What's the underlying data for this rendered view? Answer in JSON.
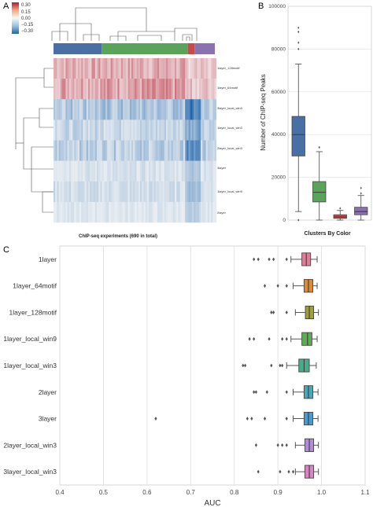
{
  "panels": {
    "a": "A",
    "b": "B",
    "c": "C"
  },
  "heatmap": {
    "colorbar_ticks": [
      "0.30",
      "0.15",
      "0.00",
      "−0.15",
      "−0.30"
    ],
    "row_labels": [
      "1layer_128motif",
      "1layer_64motif",
      "3layer_local_win3",
      "1layer_local_win3",
      "2layer_local_win3",
      "3layer",
      "1layer_local_win9",
      "2layer"
    ],
    "xlabel": "ChIP-seq experiments (690 in total)",
    "cluster_colors": [
      "#4a6fa5",
      "#5aa35a",
      "#c84a4a",
      "#8a72b0"
    ],
    "cluster_widths": [
      57,
      102,
      8,
      24
    ],
    "row_means": [
      0.12,
      0.14,
      -0.12,
      -0.08,
      -0.1,
      -0.05,
      -0.06,
      -0.04
    ]
  },
  "chart_data": [
    {
      "type": "box",
      "panel": "B",
      "xlabel": "Clusters By Color",
      "ylabel": "Number of ChIP-seq Peaks",
      "ylim": [
        0,
        100000
      ],
      "yticks": [
        0,
        20000,
        40000,
        60000,
        80000,
        100000
      ],
      "ytick_labels": [
        "0",
        "20000",
        "40000",
        "60000",
        "80000",
        "100000"
      ],
      "grid": true,
      "boxes": [
        {
          "color": "#4a6fa5",
          "whisker_low": 4000,
          "q1": 30000,
          "median": 40000,
          "q3": 48500,
          "whisker_high": 73000,
          "outliers": [
            0,
            80000,
            83000,
            88000,
            90000
          ]
        },
        {
          "color": "#5aa35a",
          "whisker_low": 0,
          "q1": 8500,
          "median": 13000,
          "q3": 18000,
          "whisker_high": 32000,
          "outliers": [
            34000
          ]
        },
        {
          "color": "#c84a4a",
          "whisker_low": 0,
          "q1": 800,
          "median": 1500,
          "q3": 2500,
          "whisker_high": 4500,
          "outliers": [
            5500
          ]
        },
        {
          "color": "#8a72b0",
          "whisker_low": 0,
          "q1": 2500,
          "median": 4000,
          "q3": 6000,
          "whisker_high": 11500,
          "outliers": [
            12500,
            15000
          ]
        }
      ]
    },
    {
      "type": "box",
      "panel": "C",
      "orientation": "horizontal",
      "xlabel": "AUC",
      "xlim": [
        0.4,
        1.1
      ],
      "xticks": [
        0.4,
        0.5,
        0.6,
        0.7,
        0.8,
        0.9,
        1.0,
        1.1
      ],
      "xtick_labels": [
        "0.4",
        "0.5",
        "0.6",
        "0.7",
        "0.8",
        "0.9",
        "1.0",
        "1.1"
      ],
      "grid": true,
      "categories": [
        "1layer",
        "1layer_64motif",
        "1layer_128motif",
        "1layer_local_win9",
        "1layer_local_win3",
        "2layer",
        "3layer",
        "2layer_local_win3",
        "3layer_local_win3"
      ],
      "boxes": [
        {
          "color": "#dd7f97",
          "whisker_low": 0.93,
          "q1": 0.955,
          "median": 0.965,
          "q3": 0.975,
          "whisker_high": 0.99,
          "outliers": [
            0.845,
            0.855,
            0.88,
            0.89,
            0.92
          ]
        },
        {
          "color": "#d88a3f",
          "whisker_low": 0.935,
          "q1": 0.96,
          "median": 0.97,
          "q3": 0.98,
          "whisker_high": 0.99,
          "outliers": [
            0.87,
            0.9,
            0.92
          ]
        },
        {
          "color": "#9fa03c",
          "whisker_low": 0.94,
          "q1": 0.963,
          "median": 0.972,
          "q3": 0.982,
          "whisker_high": 0.993,
          "outliers": [
            0.885,
            0.89,
            0.92
          ]
        },
        {
          "color": "#5eac54",
          "whisker_low": 0.93,
          "q1": 0.955,
          "median": 0.968,
          "q3": 0.978,
          "whisker_high": 0.99,
          "outliers": [
            0.835,
            0.845,
            0.88,
            0.91,
            0.92
          ]
        },
        {
          "color": "#4aaa8c",
          "whisker_low": 0.92,
          "q1": 0.948,
          "median": 0.96,
          "q3": 0.972,
          "whisker_high": 0.988,
          "outliers": [
            0.82,
            0.825,
            0.885,
            0.905,
            0.91
          ]
        },
        {
          "color": "#4aa6b8",
          "whisker_low": 0.935,
          "q1": 0.96,
          "median": 0.97,
          "q3": 0.98,
          "whisker_high": 0.992,
          "outliers": [
            0.845,
            0.85,
            0.875,
            0.92
          ]
        },
        {
          "color": "#4a9ad0",
          "whisker_low": 0.935,
          "q1": 0.96,
          "median": 0.97,
          "q3": 0.98,
          "whisker_high": 0.992,
          "outliers": [
            0.62,
            0.83,
            0.84,
            0.87,
            0.92
          ]
        },
        {
          "color": "#b18ad8",
          "whisker_low": 0.94,
          "q1": 0.962,
          "median": 0.972,
          "q3": 0.982,
          "whisker_high": 0.993,
          "outliers": [
            0.85,
            0.9,
            0.91,
            0.92
          ]
        },
        {
          "color": "#d985c4",
          "whisker_low": 0.94,
          "q1": 0.962,
          "median": 0.972,
          "q3": 0.982,
          "whisker_high": 0.993,
          "outliers": [
            0.855,
            0.905,
            0.925,
            0.935
          ]
        }
      ]
    }
  ]
}
